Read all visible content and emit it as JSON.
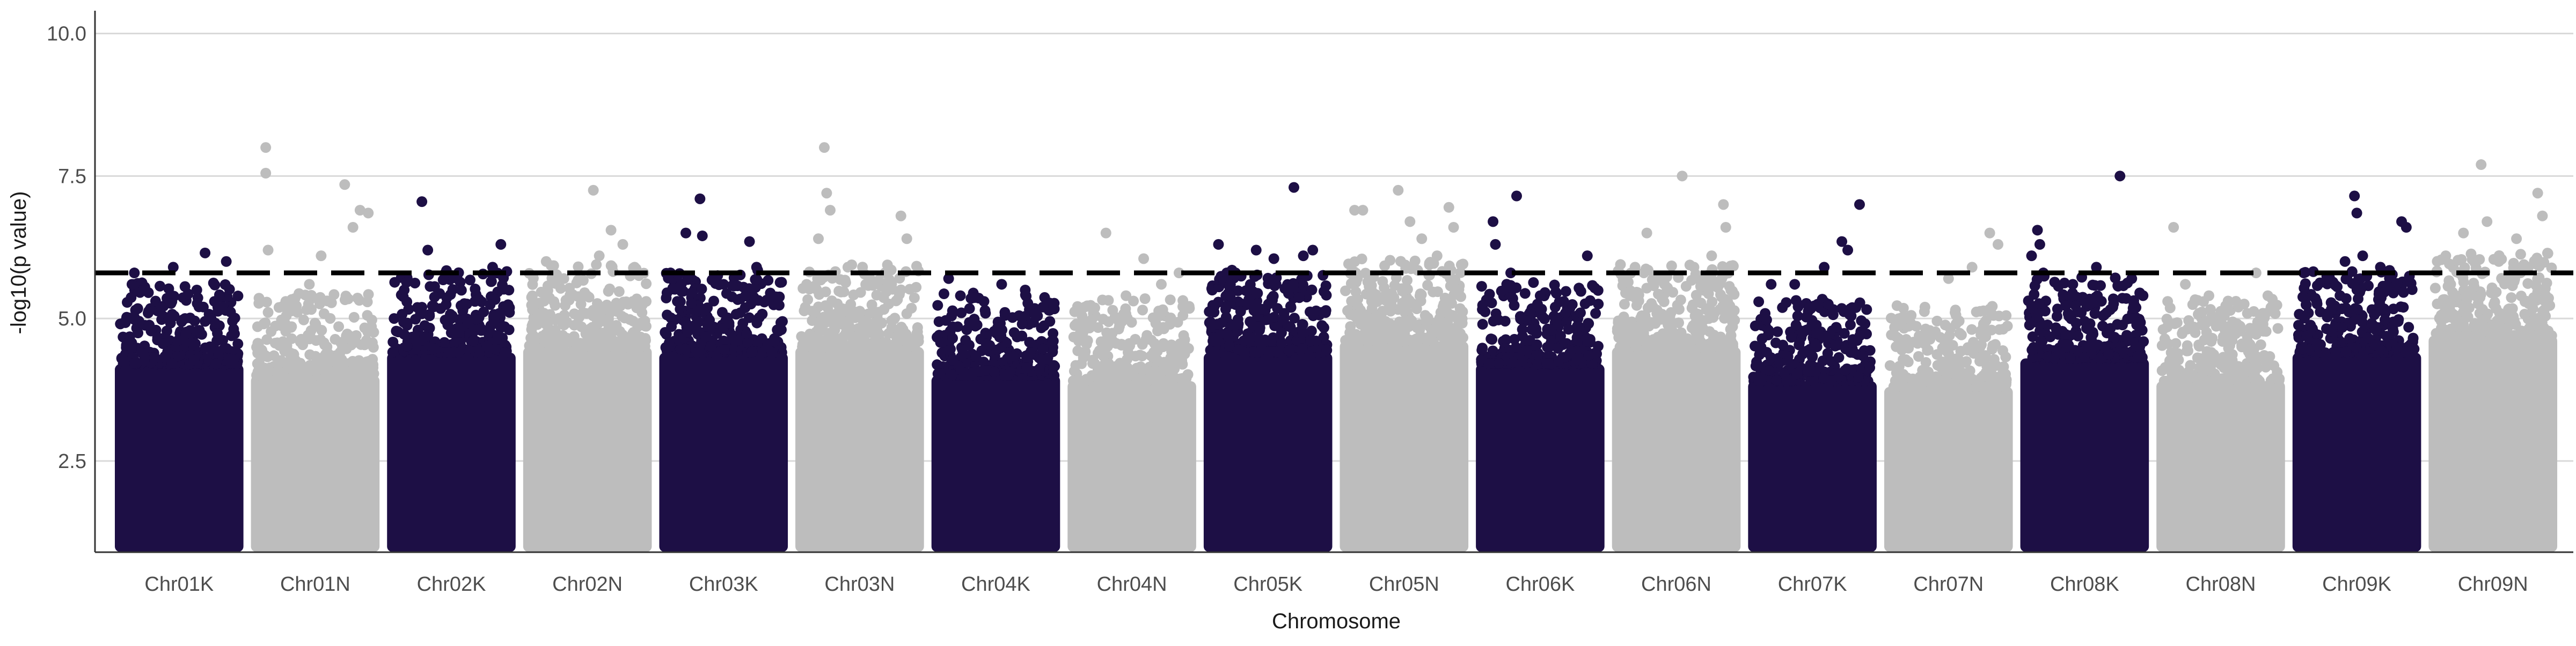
{
  "chart_data": {
    "type": "scatter",
    "title": "",
    "xlabel": "Chromosome",
    "ylabel": "-log10(p value)",
    "ylim": [
      0.9,
      10.4
    ],
    "yticks": [
      2.5,
      5.0,
      7.5,
      10.0
    ],
    "ytick_labels": [
      "2.5",
      "5.0",
      "7.5",
      "10.0"
    ],
    "grid": "horizontal major lines",
    "legend": "none",
    "threshold": 5.8,
    "colors": {
      "dark": "#1d0f45",
      "light": "#bdbdbd",
      "threshold": "#000000",
      "grid": "#d9d9d9"
    },
    "categories": [
      "Chr01K",
      "Chr01N",
      "Chr02K",
      "Chr02N",
      "Chr03K",
      "Chr03N",
      "Chr04K",
      "Chr04N",
      "Chr05K",
      "Chr05N",
      "Chr06K",
      "Chr06N",
      "Chr07K",
      "Chr07N",
      "Chr08K",
      "Chr08N",
      "Chr09K",
      "Chr09N"
    ],
    "series": [
      {
        "category": "Chr01K",
        "color": "dark",
        "bulk_max": 4.2,
        "peak_points": [
          [
            0.1,
            5.6
          ],
          [
            0.12,
            5.8
          ],
          [
            0.2,
            5.5
          ],
          [
            0.35,
            5.2
          ],
          [
            0.45,
            5.9
          ],
          [
            0.55,
            5.0
          ],
          [
            0.65,
            5.5
          ],
          [
            0.72,
            6.15
          ],
          [
            0.8,
            5.3
          ],
          [
            0.9,
            6.0
          ]
        ]
      },
      {
        "category": "Chr01N",
        "color": "light",
        "bulk_max": 4.0,
        "peak_points": [
          [
            0.08,
            8.0
          ],
          [
            0.08,
            7.55
          ],
          [
            0.1,
            6.2
          ],
          [
            0.25,
            5.3
          ],
          [
            0.45,
            5.6
          ],
          [
            0.55,
            6.1
          ],
          [
            0.75,
            7.35
          ],
          [
            0.82,
            6.6
          ],
          [
            0.88,
            6.9
          ],
          [
            0.95,
            6.85
          ]
        ]
      },
      {
        "category": "Chr02K",
        "color": "dark",
        "bulk_max": 4.4,
        "peak_points": [
          [
            0.1,
            5.5
          ],
          [
            0.25,
            7.05
          ],
          [
            0.3,
            6.2
          ],
          [
            0.45,
            5.8
          ],
          [
            0.55,
            5.7
          ],
          [
            0.7,
            5.3
          ],
          [
            0.85,
            5.9
          ],
          [
            0.92,
            6.3
          ]
        ]
      },
      {
        "category": "Chr02N",
        "color": "light",
        "bulk_max": 4.5,
        "peak_points": [
          [
            0.15,
            6.0
          ],
          [
            0.3,
            5.7
          ],
          [
            0.55,
            7.25
          ],
          [
            0.6,
            6.1
          ],
          [
            0.7,
            6.55
          ],
          [
            0.8,
            6.3
          ],
          [
            0.9,
            5.9
          ]
        ]
      },
      {
        "category": "Chr03K",
        "color": "dark",
        "bulk_max": 4.4,
        "peak_points": [
          [
            0.05,
            5.8
          ],
          [
            0.18,
            6.5
          ],
          [
            0.3,
            7.1
          ],
          [
            0.32,
            6.45
          ],
          [
            0.5,
            5.6
          ],
          [
            0.72,
            6.35
          ],
          [
            0.78,
            5.9
          ]
        ]
      },
      {
        "category": "Chr03N",
        "color": "light",
        "bulk_max": 4.5,
        "peak_points": [
          [
            0.05,
            5.6
          ],
          [
            0.15,
            6.4
          ],
          [
            0.2,
            8.0
          ],
          [
            0.22,
            7.2
          ],
          [
            0.25,
            6.9
          ],
          [
            0.4,
            5.9
          ],
          [
            0.85,
            6.8
          ],
          [
            0.9,
            6.4
          ]
        ]
      },
      {
        "category": "Chr04K",
        "color": "dark",
        "bulk_max": 4.0,
        "peak_points": [
          [
            0.1,
            5.7
          ],
          [
            0.2,
            5.4
          ],
          [
            0.4,
            5.3
          ],
          [
            0.55,
            5.6
          ],
          [
            0.75,
            5.5
          ],
          [
            0.9,
            5.2
          ]
        ]
      },
      {
        "category": "Chr04N",
        "color": "light",
        "bulk_max": 3.9,
        "peak_points": [
          [
            0.28,
            6.5
          ],
          [
            0.45,
            5.4
          ],
          [
            0.6,
            6.05
          ],
          [
            0.75,
            5.6
          ],
          [
            0.9,
            5.8
          ]
        ]
      },
      {
        "category": "Chr05K",
        "color": "dark",
        "bulk_max": 4.4,
        "peak_points": [
          [
            0.08,
            6.3
          ],
          [
            0.15,
            5.8
          ],
          [
            0.4,
            6.2
          ],
          [
            0.55,
            6.05
          ],
          [
            0.72,
            7.3
          ],
          [
            0.8,
            6.1
          ],
          [
            0.88,
            6.2
          ]
        ]
      },
      {
        "category": "Chr05N",
        "color": "light",
        "bulk_max": 4.6,
        "peak_points": [
          [
            0.08,
            6.9
          ],
          [
            0.15,
            6.9
          ],
          [
            0.45,
            7.25
          ],
          [
            0.55,
            6.7
          ],
          [
            0.65,
            6.4
          ],
          [
            0.78,
            6.1
          ],
          [
            0.88,
            6.95
          ],
          [
            0.92,
            6.6
          ]
        ]
      },
      {
        "category": "Chr06K",
        "color": "dark",
        "bulk_max": 4.2,
        "peak_points": [
          [
            0.1,
            6.7
          ],
          [
            0.12,
            6.3
          ],
          [
            0.25,
            5.8
          ],
          [
            0.3,
            7.15
          ],
          [
            0.5,
            5.4
          ],
          [
            0.7,
            5.3
          ],
          [
            0.9,
            6.1
          ]
        ]
      },
      {
        "category": "Chr06N",
        "color": "light",
        "bulk_max": 4.5,
        "peak_points": [
          [
            0.15,
            5.9
          ],
          [
            0.25,
            6.5
          ],
          [
            0.4,
            5.6
          ],
          [
            0.55,
            7.5
          ],
          [
            0.65,
            5.9
          ],
          [
            0.8,
            6.1
          ],
          [
            0.9,
            7.0
          ],
          [
            0.92,
            6.6
          ]
        ]
      },
      {
        "category": "Chr07K",
        "color": "dark",
        "bulk_max": 3.9,
        "peak_points": [
          [
            0.15,
            5.6
          ],
          [
            0.35,
            5.6
          ],
          [
            0.6,
            5.9
          ],
          [
            0.75,
            6.35
          ],
          [
            0.8,
            6.2
          ],
          [
            0.9,
            7.0
          ]
        ]
      },
      {
        "category": "Chr07N",
        "color": "light",
        "bulk_max": 3.8,
        "peak_points": [
          [
            0.1,
            4.9
          ],
          [
            0.3,
            5.2
          ],
          [
            0.5,
            5.7
          ],
          [
            0.7,
            5.9
          ],
          [
            0.85,
            6.5
          ],
          [
            0.92,
            6.3
          ]
        ]
      },
      {
        "category": "Chr08K",
        "color": "dark",
        "bulk_max": 4.3,
        "peak_points": [
          [
            0.05,
            6.1
          ],
          [
            0.1,
            6.55
          ],
          [
            0.12,
            6.3
          ],
          [
            0.15,
            5.8
          ],
          [
            0.4,
            5.6
          ],
          [
            0.6,
            5.9
          ],
          [
            0.8,
            7.5
          ],
          [
            0.9,
            5.7
          ]
        ]
      },
      {
        "category": "Chr08N",
        "color": "light",
        "bulk_max": 3.9,
        "peak_points": [
          [
            0.05,
            5.3
          ],
          [
            0.1,
            6.6
          ],
          [
            0.2,
            5.6
          ],
          [
            0.4,
            5.4
          ],
          [
            0.65,
            5.2
          ],
          [
            0.8,
            5.8
          ],
          [
            0.9,
            5.4
          ]
        ]
      },
      {
        "category": "Chr09K",
        "color": "dark",
        "bulk_max": 4.4,
        "peak_points": [
          [
            0.05,
            5.8
          ],
          [
            0.25,
            5.7
          ],
          [
            0.4,
            6.0
          ],
          [
            0.48,
            7.15
          ],
          [
            0.5,
            6.85
          ],
          [
            0.55,
            6.1
          ],
          [
            0.7,
            5.9
          ],
          [
            0.88,
            6.7
          ],
          [
            0.92,
            6.6
          ]
        ]
      },
      {
        "category": "Chr09N",
        "color": "light",
        "bulk_max": 4.7,
        "peak_points": [
          [
            0.1,
            6.1
          ],
          [
            0.25,
            6.5
          ],
          [
            0.4,
            7.7
          ],
          [
            0.45,
            6.7
          ],
          [
            0.55,
            6.0
          ],
          [
            0.7,
            6.4
          ],
          [
            0.8,
            5.9
          ],
          [
            0.88,
            7.2
          ],
          [
            0.92,
            6.8
          ]
        ]
      }
    ]
  }
}
